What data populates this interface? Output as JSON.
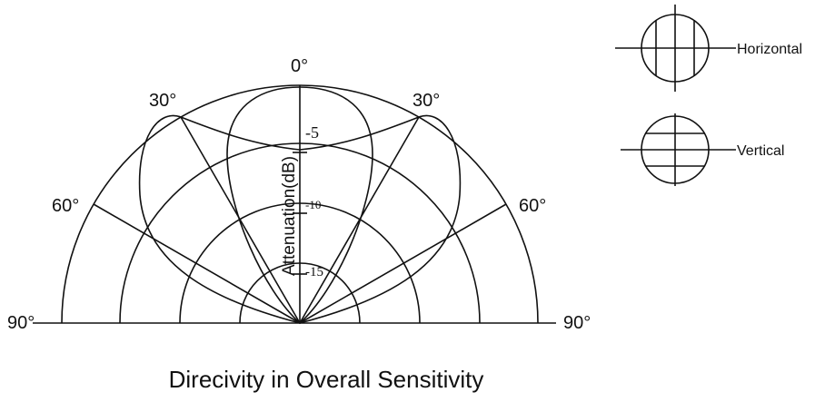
{
  "title": "Direcivity in Overall Sensitivity",
  "axis_label": "Attenuation(dB)",
  "angles": {
    "top": "0°",
    "left_30": "30°",
    "right_30": "30°",
    "left_60": "60°",
    "right_60": "60°",
    "left_90": "90°",
    "right_90": "90°"
  },
  "rings": [
    {
      "label": "-5"
    },
    {
      "label": "-10"
    },
    {
      "label": "-15"
    }
  ],
  "legend": {
    "horizontal_label": "Horizontal",
    "vertical_label": "Vertical"
  },
  "patterns": [
    {
      "name_ref": "horizontal",
      "shape": "narrow lobe"
    },
    {
      "name_ref": "vertical",
      "shape": "wide lobe"
    }
  ]
}
